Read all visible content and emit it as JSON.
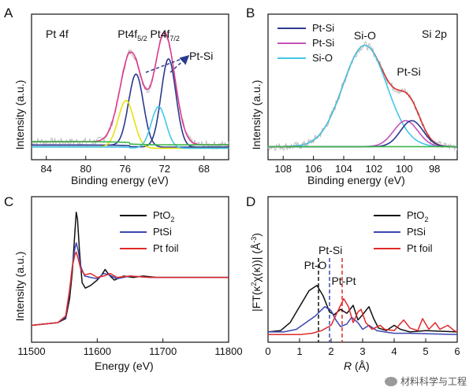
{
  "watermark": "材料科学与工程",
  "chart_data": [
    {
      "panel": "A",
      "type": "line",
      "title": "Pt 4f",
      "xlabel": "Binding energy (eV)",
      "ylabel": "Intensity (a.u.)",
      "xlim": [
        85.5,
        65.5
      ],
      "ylim": [
        0,
        100
      ],
      "x_reversed": true,
      "xticks": [
        84,
        80,
        76,
        72,
        68
      ],
      "peak_labels": [
        {
          "base": "Pt4f",
          "sub": "5/2",
          "x": 75
        },
        {
          "base": "Pt4f",
          "sub": "7/2",
          "x": 71.7
        }
      ],
      "annotation": "Pt-Si",
      "series": [
        {
          "name": "raw",
          "color": "#bdbdbd",
          "noise": true,
          "peaks": [
            [
              75.3,
              62,
              1.1
            ],
            [
              71.9,
              78,
              1.0
            ],
            [
              75.9,
              10,
              1.0
            ],
            [
              72.6,
              10,
              0.9
            ]
          ],
          "base": [
            6,
            1.2
          ]
        },
        {
          "name": "envelope",
          "color": "#e0398e",
          "peaks": [
            [
              75.3,
              62,
              1.1
            ],
            [
              71.9,
              78,
              1.0
            ],
            [
              75.9,
              10,
              1.0
            ],
            [
              72.6,
              10,
              0.9
            ]
          ],
          "base": [
            6,
            1.2
          ]
        },
        {
          "name": "Pt-Si 5/2",
          "color": "#2b3a8f",
          "peaks": [
            [
              74.9,
              56,
              0.75
            ]
          ],
          "base": [
            4,
            0.8
          ]
        },
        {
          "name": "Pt-Si 7/2",
          "color": "#2b3a8f",
          "peaks": [
            [
              71.6,
              68,
              0.75
            ]
          ],
          "base": [
            4,
            0.8
          ]
        },
        {
          "name": "comp 5/2",
          "color": "#e8e10f",
          "peaks": [
            [
              75.9,
              36,
              0.8
            ]
          ],
          "base": [
            3,
            0.5
          ]
        },
        {
          "name": "comp 7/2",
          "color": "#43c7e8",
          "peaks": [
            [
              72.6,
              32,
              0.75
            ]
          ],
          "base": [
            3,
            0.5
          ]
        },
        {
          "name": "background",
          "color": "#3bb54a",
          "peaks": [],
          "base": [
            6,
            1.2
          ],
          "bg_only": true
        }
      ]
    },
    {
      "panel": "B",
      "type": "line",
      "title": "Si 2p",
      "xlabel": "Binding energy (eV)",
      "ylabel": "Intensity (a.u.)",
      "xlim": [
        109,
        96.5
      ],
      "ylim": [
        0,
        100
      ],
      "x_reversed": true,
      "xticks": [
        108,
        106,
        104,
        102,
        100,
        98
      ],
      "legend": [
        {
          "label": "Pt-Si",
          "color": "#2b3a8f"
        },
        {
          "label": "Pt-Si",
          "color": "#c552b8"
        },
        {
          "label": "Si-O",
          "color": "#43c7e8"
        }
      ],
      "peak_labels": [
        {
          "text": "Si-O",
          "x": 102.6
        },
        {
          "text": "Pt-Si",
          "x": 99.7
        }
      ],
      "series": [
        {
          "name": "raw",
          "color": "#bdbdbd",
          "noise": true,
          "peaks": [
            [
              102.6,
              78,
              1.45
            ],
            [
              99.9,
              14,
              0.75
            ],
            [
              99.5,
              16,
              0.75
            ]
          ],
          "base": [
            4,
            0
          ]
        },
        {
          "name": "envelope",
          "color": "#d9302d",
          "peaks": [
            [
              102.6,
              78,
              1.45
            ],
            [
              99.9,
              14,
              0.75
            ],
            [
              99.5,
              16,
              0.75
            ]
          ],
          "base": [
            4,
            0
          ]
        },
        {
          "name": "Si-O",
          "color": "#43c7e8",
          "peaks": [
            [
              102.6,
              78,
              1.45
            ]
          ],
          "base": [
            4,
            0
          ]
        },
        {
          "name": "Pt-Si (1)",
          "color": "#c552b8",
          "peaks": [
            [
              99.9,
              20,
              0.8
            ]
          ],
          "base": [
            4,
            0
          ]
        },
        {
          "name": "Pt-Si (2)",
          "color": "#2b3a8f",
          "peaks": [
            [
              99.5,
              20,
              0.75
            ]
          ],
          "base": [
            4,
            0
          ]
        },
        {
          "name": "background",
          "color": "#3bb54a",
          "peaks": [],
          "base": [
            4,
            0
          ],
          "bg_only": true
        }
      ]
    },
    {
      "panel": "C",
      "type": "line",
      "xlabel": "Energy (eV)",
      "ylabel": "Intensity (a.u.)",
      "xlim": [
        11500,
        11800
      ],
      "ylim": [
        0,
        100
      ],
      "xticks": [
        11500,
        11600,
        11700,
        11800
      ],
      "legend": [
        {
          "label": "PtO",
          "sub": "2",
          "color": "#111111"
        },
        {
          "label": "PtSi",
          "color": "#3b46b0"
        },
        {
          "label": "Pt foil",
          "color": "#e02a2a"
        }
      ],
      "series": [
        {
          "name": "PtO2",
          "color": "#111111",
          "points": [
            [
              11500,
              8
            ],
            [
              11540,
              10
            ],
            [
              11552,
              13
            ],
            [
              11558,
              28
            ],
            [
              11562,
              48
            ],
            [
              11566,
              78
            ],
            [
              11568,
              93
            ],
            [
              11570,
              88
            ],
            [
              11573,
              64
            ],
            [
              11577,
              40
            ],
            [
              11582,
              36
            ],
            [
              11590,
              38
            ],
            [
              11600,
              42
            ],
            [
              11607,
              46
            ],
            [
              11612,
              50
            ],
            [
              11618,
              46
            ],
            [
              11626,
              42
            ],
            [
              11640,
              45
            ],
            [
              11655,
              44
            ],
            [
              11670,
              45
            ],
            [
              11690,
              44
            ],
            [
              11720,
              44
            ],
            [
              11760,
              44
            ],
            [
              11800,
              44
            ]
          ]
        },
        {
          "name": "PtSi",
          "color": "#3b46b0",
          "points": [
            [
              11500,
              8
            ],
            [
              11540,
              10
            ],
            [
              11552,
              14
            ],
            [
              11558,
              33
            ],
            [
              11562,
              52
            ],
            [
              11566,
              66
            ],
            [
              11568,
              70
            ],
            [
              11571,
              64
            ],
            [
              11575,
              52
            ],
            [
              11581,
              45
            ],
            [
              11590,
              44
            ],
            [
              11600,
              43
            ],
            [
              11610,
              47
            ],
            [
              11618,
              46
            ],
            [
              11630,
              43
            ],
            [
              11650,
              45
            ],
            [
              11680,
              44
            ],
            [
              11720,
              44
            ],
            [
              11760,
              44
            ],
            [
              11800,
              44
            ]
          ]
        },
        {
          "name": "Pt foil",
          "color": "#e02a2a",
          "points": [
            [
              11500,
              8
            ],
            [
              11540,
              10
            ],
            [
              11552,
              15
            ],
            [
              11558,
              35
            ],
            [
              11562,
              52
            ],
            [
              11566,
              61
            ],
            [
              11568,
              63
            ],
            [
              11571,
              58
            ],
            [
              11575,
              50
            ],
            [
              11581,
              46
            ],
            [
              11590,
              47
            ],
            [
              11600,
              44
            ],
            [
              11610,
              45
            ],
            [
              11620,
              47
            ],
            [
              11630,
              44
            ],
            [
              11650,
              45
            ],
            [
              11680,
              44
            ],
            [
              11720,
              44
            ],
            [
              11760,
              44
            ],
            [
              11800,
              44
            ]
          ]
        }
      ]
    },
    {
      "panel": "D",
      "type": "line",
      "xlabel": "R (Å)",
      "ylabel": "|FT(κ²χ(κ))| (Å⁻³)",
      "ylabel_parts": {
        "a": "|FT(κ",
        "s1": "2",
        "b": "χ(κ))| (Å",
        "s2": "-3",
        "c": ")"
      },
      "xlim": [
        0,
        6
      ],
      "ylim": [
        0,
        100
      ],
      "xticks": [
        0,
        1,
        2,
        3,
        4,
        5,
        6
      ],
      "legend": [
        {
          "label": "PtO",
          "sub": "2",
          "color": "#111111"
        },
        {
          "label": "PtSi",
          "color": "#3b46b0"
        },
        {
          "label": "Pt foil",
          "color": "#e02a2a"
        }
      ],
      "peak_labels": [
        {
          "text": "Pt-O",
          "x": 1.5
        },
        {
          "text": "Pt-Si",
          "x": 1.98
        },
        {
          "text": "Pt-Pt",
          "x": 2.4
        }
      ],
      "dashed_markers": [
        {
          "x": 1.6,
          "color": "#111111"
        },
        {
          "x": 1.95,
          "color": "#3b46b0"
        },
        {
          "x": 2.35,
          "color": "#e02a2a"
        }
      ],
      "series": [
        {
          "name": "PtO2",
          "color": "#111111",
          "points": [
            [
              0,
              3
            ],
            [
              0.4,
              4
            ],
            [
              0.7,
              10
            ],
            [
              1.0,
              22
            ],
            [
              1.3,
              34
            ],
            [
              1.55,
              38
            ],
            [
              1.75,
              30
            ],
            [
              1.95,
              18
            ],
            [
              2.1,
              16
            ],
            [
              2.3,
              20
            ],
            [
              2.5,
              17
            ],
            [
              2.7,
              23
            ],
            [
              2.85,
              12
            ],
            [
              3.0,
              16
            ],
            [
              3.2,
              22
            ],
            [
              3.35,
              13
            ],
            [
              3.5,
              6
            ],
            [
              3.75,
              4
            ],
            [
              4.0,
              8
            ],
            [
              4.2,
              5
            ],
            [
              4.5,
              3
            ],
            [
              5.0,
              4
            ],
            [
              6,
              3
            ]
          ]
        },
        {
          "name": "PtSi",
          "color": "#3b46b0",
          "points": [
            [
              0,
              3
            ],
            [
              0.5,
              3
            ],
            [
              0.9,
              5
            ],
            [
              1.2,
              10
            ],
            [
              1.5,
              15
            ],
            [
              1.8,
              22
            ],
            [
              2.0,
              19
            ],
            [
              2.15,
              12
            ],
            [
              2.3,
              7
            ],
            [
              2.5,
              9
            ],
            [
              2.65,
              14
            ],
            [
              2.85,
              10
            ],
            [
              3.0,
              5
            ],
            [
              3.2,
              8
            ],
            [
              3.45,
              4
            ],
            [
              3.7,
              3
            ],
            [
              4.0,
              2
            ],
            [
              4.5,
              2
            ],
            [
              6,
              1
            ]
          ]
        },
        {
          "name": "Pt foil",
          "color": "#e02a2a",
          "points": [
            [
              0,
              1
            ],
            [
              0.6,
              1
            ],
            [
              1.0,
              1
            ],
            [
              1.4,
              2
            ],
            [
              1.7,
              4
            ],
            [
              2.0,
              8
            ],
            [
              2.2,
              18
            ],
            [
              2.4,
              28
            ],
            [
              2.55,
              22
            ],
            [
              2.7,
              10
            ],
            [
              2.85,
              18
            ],
            [
              2.95,
              20
            ],
            [
              3.1,
              10
            ],
            [
              3.3,
              5
            ],
            [
              3.55,
              8
            ],
            [
              3.7,
              5
            ],
            [
              4.0,
              4
            ],
            [
              4.3,
              12
            ],
            [
              4.5,
              6
            ],
            [
              4.75,
              4
            ],
            [
              4.9,
              13
            ],
            [
              5.1,
              5
            ],
            [
              5.3,
              10
            ],
            [
              5.45,
              5
            ],
            [
              5.7,
              8
            ],
            [
              5.9,
              4
            ],
            [
              6,
              3
            ]
          ]
        }
      ]
    }
  ]
}
